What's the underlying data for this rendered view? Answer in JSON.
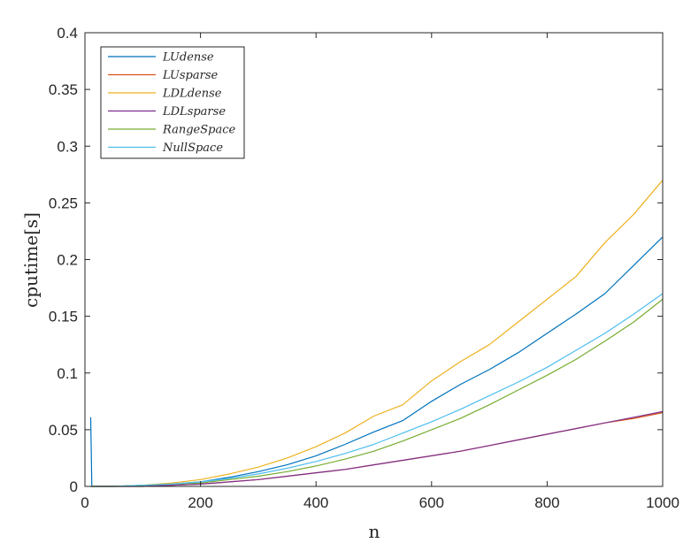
{
  "chart_data": {
    "type": "line",
    "xlabel": "n",
    "ylabel": "cputime[s]",
    "xlim": [
      0,
      1000
    ],
    "ylim": [
      0,
      0.4
    ],
    "xticks": [
      0,
      200,
      400,
      600,
      800,
      1000
    ],
    "yticks": [
      0,
      0.05,
      0.1,
      0.15,
      0.2,
      0.25,
      0.3,
      0.35,
      0.4
    ],
    "xtick_labels": [
      "0",
      "200",
      "400",
      "600",
      "800",
      "1000"
    ],
    "ytick_labels": [
      "0",
      "0.05",
      "0.1",
      "0.15",
      "0.2",
      "0.25",
      "0.3",
      "0.35",
      "0.4"
    ],
    "grid": false,
    "legend_position": "top-left",
    "series": [
      {
        "name": "LUdense",
        "color": "#0072BD",
        "x": [
          10,
          12,
          50,
          100,
          150,
          200,
          250,
          300,
          350,
          400,
          450,
          500,
          550,
          600,
          650,
          700,
          750,
          800,
          850,
          900,
          950,
          1000
        ],
        "y": [
          0.061,
          0.0,
          0.0,
          0.001,
          0.002,
          0.004,
          0.008,
          0.013,
          0.019,
          0.027,
          0.037,
          0.048,
          0.058,
          0.075,
          0.09,
          0.103,
          0.118,
          0.135,
          0.152,
          0.17,
          0.195,
          0.22
        ]
      },
      {
        "name": "LUsparse",
        "color": "#D95319",
        "x": [
          10,
          12,
          50,
          100,
          150,
          200,
          250,
          300,
          350,
          400,
          450,
          500,
          550,
          600,
          650,
          700,
          750,
          800,
          850,
          900,
          950,
          1000
        ],
        "y": [
          0.0,
          0.0,
          0.0,
          0.0,
          0.001,
          0.002,
          0.004,
          0.006,
          0.009,
          0.012,
          0.015,
          0.019,
          0.023,
          0.027,
          0.031,
          0.036,
          0.041,
          0.046,
          0.051,
          0.056,
          0.06,
          0.065
        ]
      },
      {
        "name": "LDLdense",
        "color": "#EDB120",
        "x": [
          10,
          12,
          50,
          100,
          150,
          200,
          250,
          300,
          350,
          400,
          450,
          500,
          550,
          600,
          650,
          700,
          750,
          800,
          850,
          900,
          950,
          1000
        ],
        "y": [
          0.0,
          0.0,
          0.0,
          0.001,
          0.003,
          0.006,
          0.011,
          0.017,
          0.025,
          0.035,
          0.047,
          0.062,
          0.072,
          0.093,
          0.11,
          0.125,
          0.145,
          0.165,
          0.185,
          0.215,
          0.24,
          0.27
        ]
      },
      {
        "name": "LDLsparse",
        "color": "#7E2F8E",
        "x": [
          10,
          12,
          50,
          100,
          150,
          200,
          250,
          300,
          350,
          400,
          450,
          500,
          550,
          600,
          650,
          700,
          750,
          800,
          850,
          900,
          950,
          1000
        ],
        "y": [
          0.0,
          0.0,
          0.0,
          0.0,
          0.001,
          0.002,
          0.004,
          0.006,
          0.009,
          0.012,
          0.015,
          0.019,
          0.023,
          0.027,
          0.031,
          0.036,
          0.041,
          0.046,
          0.051,
          0.056,
          0.061,
          0.066
        ]
      },
      {
        "name": "RangeSpace",
        "color": "#77AC30",
        "x": [
          10,
          12,
          50,
          100,
          150,
          200,
          250,
          300,
          350,
          400,
          450,
          500,
          550,
          600,
          650,
          700,
          750,
          800,
          850,
          900,
          950,
          1000
        ],
        "y": [
          0.0,
          0.0,
          0.0,
          0.001,
          0.002,
          0.003,
          0.006,
          0.009,
          0.013,
          0.018,
          0.024,
          0.031,
          0.04,
          0.05,
          0.06,
          0.072,
          0.085,
          0.098,
          0.112,
          0.128,
          0.145,
          0.165
        ]
      },
      {
        "name": "NullSpace",
        "color": "#4DBEEE",
        "x": [
          10,
          12,
          50,
          100,
          150,
          200,
          250,
          300,
          350,
          400,
          450,
          500,
          550,
          600,
          650,
          700,
          750,
          800,
          850,
          900,
          950,
          1000
        ],
        "y": [
          0.0,
          0.0,
          0.0,
          0.001,
          0.002,
          0.004,
          0.007,
          0.011,
          0.016,
          0.022,
          0.029,
          0.037,
          0.047,
          0.057,
          0.068,
          0.08,
          0.092,
          0.105,
          0.12,
          0.135,
          0.152,
          0.17
        ]
      }
    ]
  }
}
